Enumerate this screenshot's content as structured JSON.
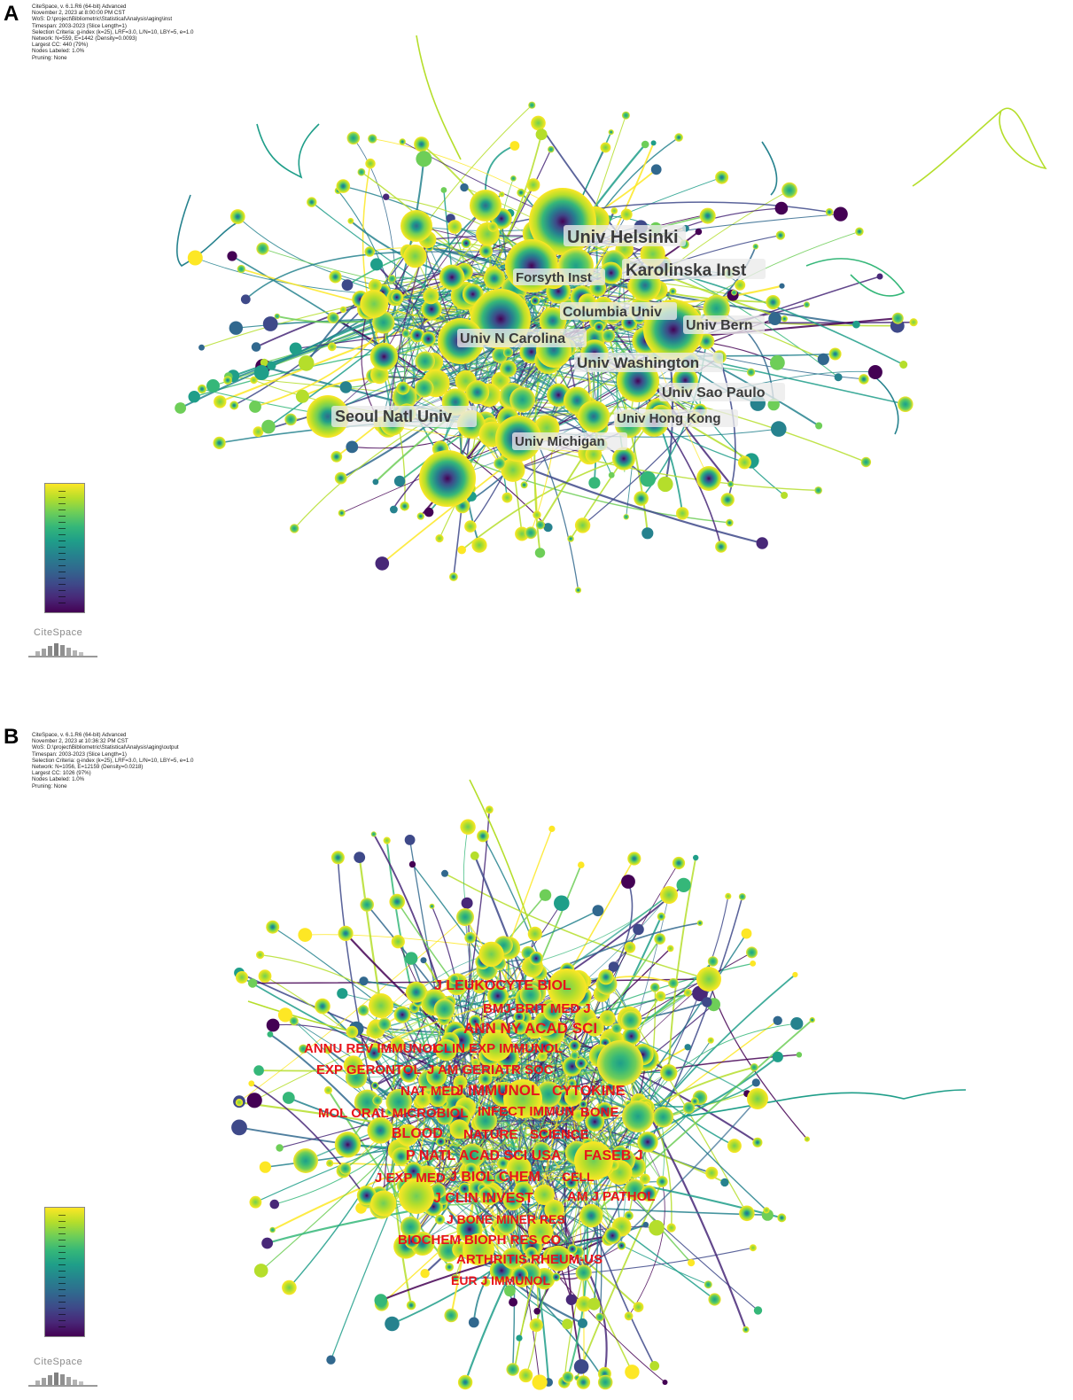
{
  "panel_a": {
    "letter": "A",
    "meta_lines": [
      "CiteSpace, v. 6.1.R6 (64-bit) Advanced",
      "November 2, 2023 at 8:00:00 PM CST",
      "WoS: D:\\project\\Bibliometric\\Statistical\\Analysis\\aging\\inst",
      "Timespan: 2003-2023 (Slice Length=1)",
      "Selection Criteria: g-index (k=25), LRF=3.0, L/N=10, LBY=5, e=1.0",
      "Network: N=559, E=1442 (Density=0.0093)",
      "Largest CC: 440 (79%)",
      "Nodes Labeled: 1.0%",
      "Pruning: None"
    ],
    "labels": [
      "Univ Helsinki",
      "Karolinska Inst",
      "Forsyth Inst",
      "Columbia Univ",
      "Univ Bern",
      "Univ N Carolina",
      "Univ Washington",
      "Univ Sao Paulo",
      "Seoul Natl Univ",
      "Univ Hong Kong",
      "Univ Michigan"
    ],
    "logo": "CiteSpace"
  },
  "panel_b": {
    "letter": "B",
    "meta_lines": [
      "CiteSpace, v. 6.1.R6 (64-bit) Advanced",
      "November 2, 2023 at 10:36:32 PM CST",
      "WoS: D:\\project\\Bibliometric\\Statistical\\Analysis\\aging\\output",
      "Timespan: 2003-2023 (Slice Length=1)",
      "Selection Criteria: g-index (k=25), LRF=3.0, L/N=10, LBY=5, e=1.0",
      "Network: N=1056, E=12159 (Density=0.0218)",
      "Largest CC: 1026 (97%)",
      "Nodes Labeled: 1.0%",
      "Pruning: None"
    ],
    "labels": [
      "J LEUKOCYTE BIOL",
      "BMJ-BRIT MED J",
      "ANN NY ACAD SCI",
      "ANNU REV IMMUNOL",
      "CLIN EXP IMMUNOL",
      "EXP GERONTOL",
      "J AM GERIATR SOC",
      "NAT MED",
      "J IMMUNOL",
      "CYTOKINE",
      "MOL ORAL MICROBIOL",
      "INFECT IMMUN",
      "BONE",
      "BLOOD",
      "NATURE",
      "SCIENCE",
      "P NATL ACAD SCI USA",
      "FASEB J",
      "J EXP MED",
      "J BIOL CHEM",
      "CELL",
      "AM J PATHOL",
      "J CLIN INVEST",
      "J BONE MINER RES",
      "BIOCHEM BIOPH RES CO",
      "ARTHRITIS RHEUM-US",
      "EUR J IMMUNOL"
    ],
    "logo": "CiteSpace"
  },
  "colors": {
    "viridis": [
      "#440154",
      "#482878",
      "#3e4989",
      "#31688e",
      "#26828e",
      "#1f9e89",
      "#35b779",
      "#6ece58",
      "#b5de2b",
      "#fde725"
    ],
    "label_a": "#3b3b3b",
    "label_b": "#e8141b"
  }
}
